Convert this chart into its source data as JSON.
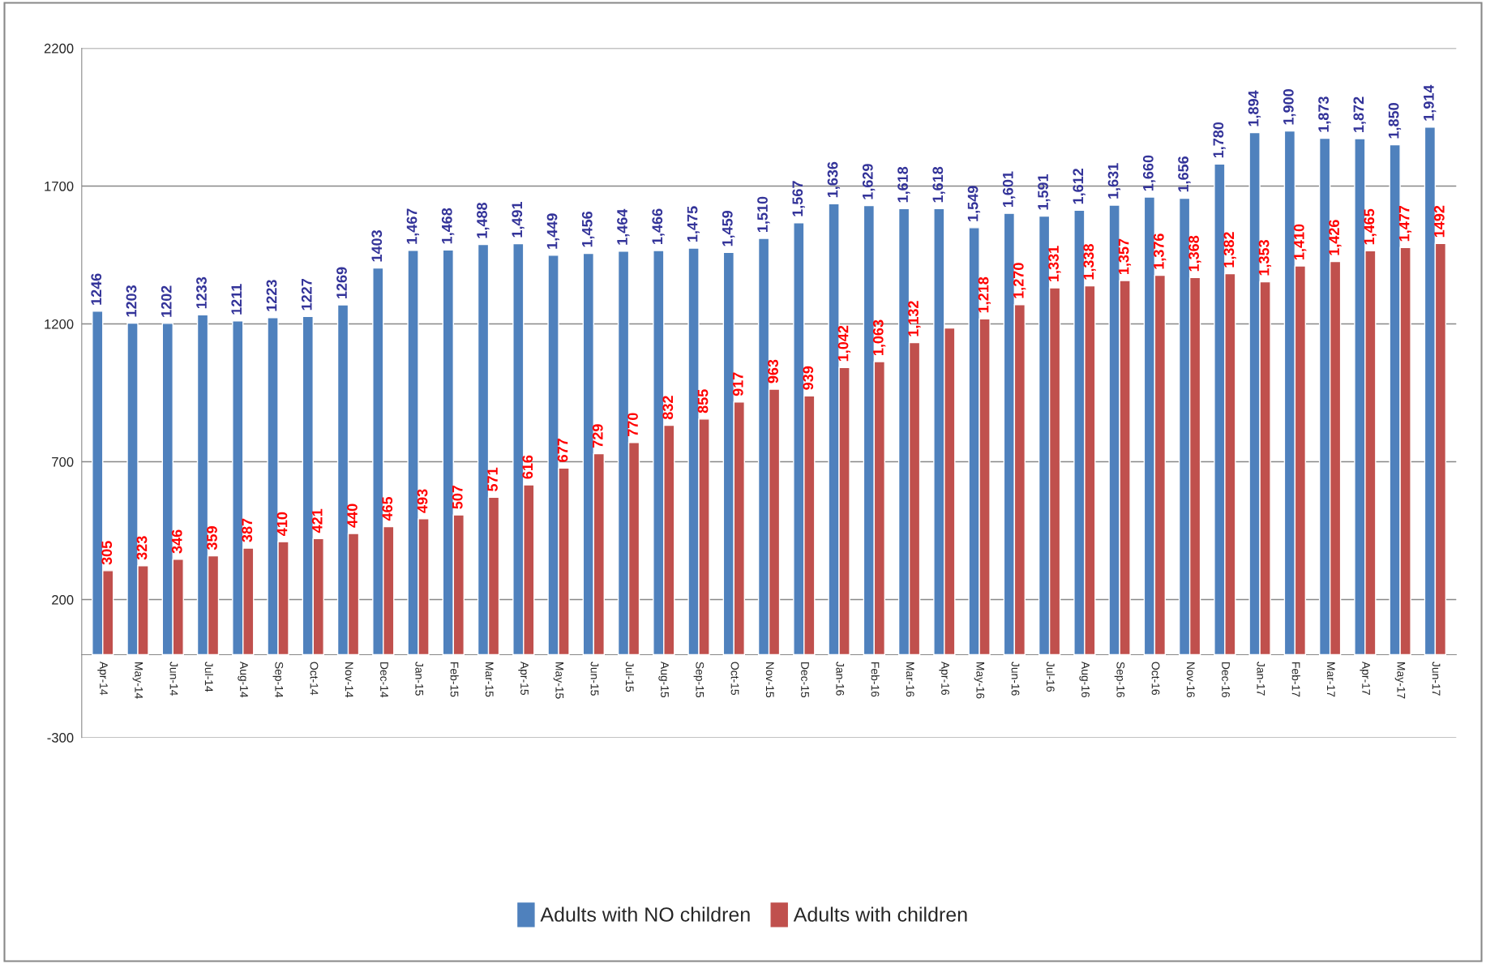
{
  "chart_data": {
    "type": "bar",
    "categories": [
      "Apr-14",
      "May-14",
      "Jun-14",
      "Jul-14",
      "Aug-14",
      "Sep-14",
      "Oct-14",
      "Nov-14",
      "Dec-14",
      "Jan-15",
      "Feb-15",
      "Mar-15",
      "Apr-15",
      "May-15",
      "Jun-15",
      "Jul-15",
      "Aug-15",
      "Sep-15",
      "Oct-15",
      "Nov-15",
      "Dec-15",
      "Jan-16",
      "Feb-16",
      "Mar-16",
      "Apr-16",
      "May-16",
      "Jun-16",
      "Jul-16",
      "Aug-16",
      "Sep-16",
      "Oct-16",
      "Nov-16",
      "Dec-16",
      "Jan-17",
      "Feb-17",
      "Mar-17",
      "Apr-17",
      "May-17",
      "Jun-17"
    ],
    "series": [
      {
        "name": "Adults with NO children",
        "color": "#4f81bd",
        "values": [
          1246,
          1203,
          1202,
          1233,
          1211,
          1223,
          1227,
          1269,
          1403,
          1467,
          1468,
          1488,
          1491,
          1449,
          1456,
          1464,
          1466,
          1475,
          1459,
          1510,
          1567,
          1636,
          1629,
          1618,
          1618,
          1549,
          1601,
          1591,
          1612,
          1631,
          1660,
          1656,
          1780,
          1894,
          1900,
          1873,
          1872,
          1850,
          1914
        ],
        "value_labels": [
          "1246",
          "1203",
          "1202",
          "1233",
          "1211",
          "1223",
          "1227",
          "1269",
          "1403",
          "1,467",
          "1,468",
          "1,488",
          "1,491",
          "1,449",
          "1,456",
          "1,464",
          "1,466",
          "1,475",
          "1,459",
          "1,510",
          "1,567",
          "1,636",
          "1,629",
          "1,618",
          "1,618",
          "1,549",
          "1,601",
          "1,591",
          "1,612",
          "1,631",
          "1,660",
          "1,656",
          "1,780",
          "1,894",
          "1,900",
          "1,873",
          "1,872",
          "1,850",
          "1,914"
        ]
      },
      {
        "name": "Adults with children",
        "color": "#c0504d",
        "values": [
          305,
          323,
          346,
          359,
          387,
          410,
          421,
          440,
          465,
          493,
          507,
          571,
          616,
          677,
          729,
          770,
          832,
          855,
          917,
          963,
          939,
          1042,
          1063,
          1132,
          1185,
          1218,
          1270,
          1331,
          1338,
          1357,
          1376,
          1368,
          1382,
          1353,
          1410,
          1426,
          1465,
          1477,
          1492
        ],
        "value_labels": [
          "305",
          "323",
          "346",
          "359",
          "387",
          "410",
          "421",
          "440",
          "465",
          "493",
          "507",
          "571",
          "616",
          "677",
          "729",
          "770",
          "832",
          "855",
          "917",
          "963",
          "939",
          "1,042",
          "1,063",
          "1,132",
          null,
          "1,218",
          "1,270",
          "1,331",
          "1,338",
          "1,357",
          "1,376",
          "1,368",
          "1,382",
          "1,353",
          "1,410",
          "1,426",
          "1,465",
          "1,477",
          "1492"
        ]
      }
    ],
    "ylim": [
      -300,
      2200
    ],
    "yticks": [
      -300,
      200,
      700,
      1200,
      1700,
      2200
    ],
    "grid": "y",
    "legend": "bottom"
  }
}
